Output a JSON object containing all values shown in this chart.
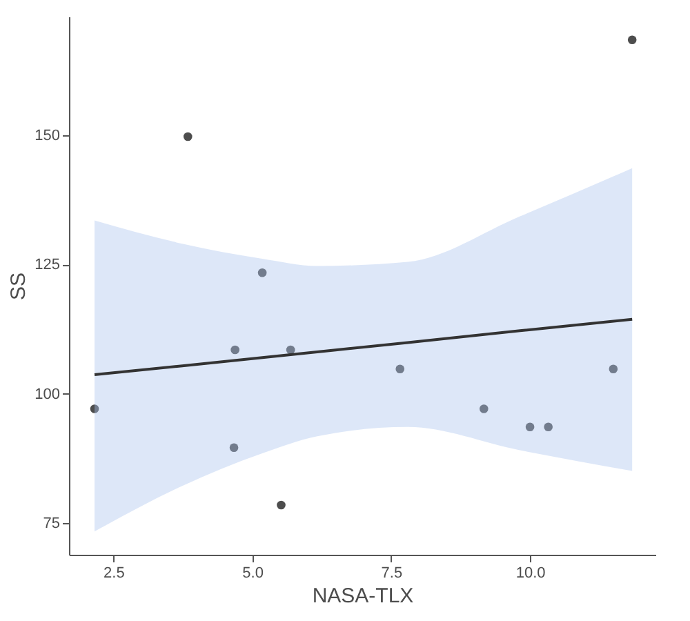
{
  "chart_data": {
    "type": "scatter",
    "xlabel": "NASA-TLX",
    "ylabel": "SS",
    "xlim": [
      1.7,
      12.26
    ],
    "ylim": [
      68.9,
      172.9
    ],
    "xticks": [
      {
        "value": 2.5,
        "label": "2.5"
      },
      {
        "value": 5,
        "label": "5.0"
      },
      {
        "value": 7.5,
        "label": "7.5"
      },
      {
        "value": 10,
        "label": "10.0"
      }
    ],
    "yticks": [
      75,
      100,
      125,
      150
    ],
    "grid": false,
    "series": [
      {
        "color": "#4d4d4d",
        "marker": "circle",
        "x": [
          2.16,
          3.84,
          5.18,
          4.69,
          5.69,
          4.67,
          5.52,
          7.66,
          9.17,
          10.0,
          10.33,
          11.5,
          11.84
        ],
        "values": [
          97.1,
          149.7,
          123.4,
          108.5,
          108.5,
          89.6,
          78.5,
          104.8,
          97.1,
          93.6,
          93.6,
          104.8,
          168.4
        ]
      },
      {
        "type": "line",
        "color": "#333333",
        "line_style": "solid",
        "x": [
          2.16,
          3.74,
          5.18,
          6.17,
          7.8,
          9.82,
          11.84
        ],
        "values": [
          103.7,
          105.4,
          107.0,
          108.1,
          109.9,
          112.2,
          114.4
        ],
        "lower": [
          73.4,
          82.2,
          88.5,
          91.8,
          93.6,
          89.1,
          85.1
        ],
        "upper": [
          133.5,
          129.0,
          126.1,
          124.7,
          125.5,
          134.3,
          143.6
        ]
      }
    ]
  }
}
